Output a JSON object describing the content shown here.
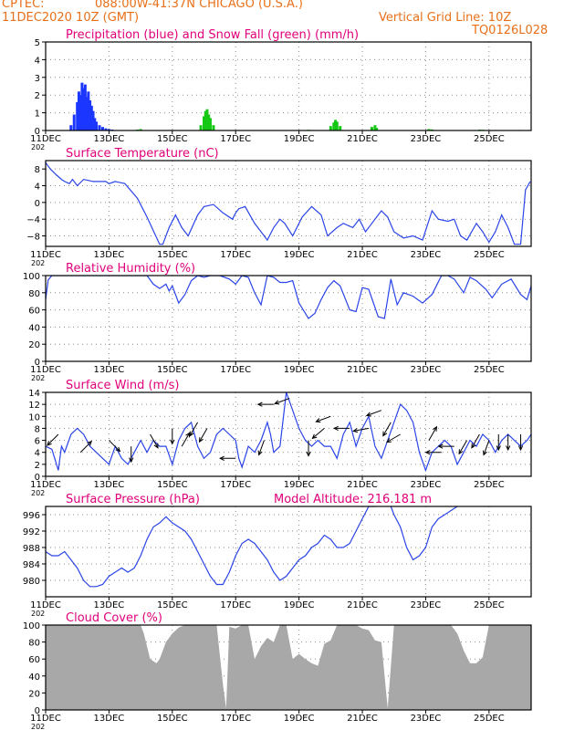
{
  "header": {
    "source": "CPTEC:",
    "location": "088:00W-41:37N   CHICAGO (U.S.A.)",
    "run": "11DEC2020 10Z (GMT)",
    "grid_note": "Vertical Grid Line: 10Z",
    "code": "TQ0126L028",
    "altitude_label": "Model Altitude: 216.181 m"
  },
  "colors": {
    "title": "#e0007a",
    "header": "#e8701a",
    "line": "#2a44e8",
    "precip": "#1b36ff",
    "snow": "#14c814",
    "cloud": "#a8a8a8",
    "wind": "#000000"
  },
  "x_axis": {
    "unit": "days since 11DEC2020 00Z",
    "range": [
      0,
      15.33
    ],
    "ticks": [
      0,
      2,
      4,
      6,
      8,
      10,
      12,
      14
    ],
    "tick_labels": [
      "11DEC",
      "13DEC",
      "15DEC",
      "17DEC",
      "19DEC",
      "21DEC",
      "23DEC",
      "25DEC"
    ],
    "year_fragment": "202"
  },
  "chart_data": [
    {
      "type": "bar",
      "title": "Precipitation (blue) and Snow Fall (green) (mm/h)",
      "ylim": [
        0,
        5
      ],
      "yticks": [
        0,
        1,
        2,
        3,
        4,
        5
      ],
      "series": [
        {
          "name": "Precipitation",
          "color": "#1b36ff",
          "x": [
            0.8,
            0.9,
            1.0,
            1.05,
            1.1,
            1.15,
            1.2,
            1.25,
            1.3,
            1.35,
            1.4,
            1.45,
            1.5,
            1.55,
            1.6,
            1.7,
            1.8,
            1.9,
            2.0,
            2.1
          ],
          "values": [
            0.3,
            0.9,
            1.6,
            2.2,
            2.0,
            2.7,
            2.4,
            2.6,
            1.9,
            2.2,
            1.7,
            1.4,
            1.1,
            0.7,
            0.5,
            0.3,
            0.2,
            0.12,
            0.08,
            0.05
          ]
        },
        {
          "name": "Snow Fall",
          "color": "#14c814",
          "x": [
            2.9,
            3.0,
            4.9,
            5.0,
            5.05,
            5.1,
            5.15,
            5.2,
            5.3,
            8.3,
            9.0,
            9.1,
            9.15,
            9.2,
            9.3,
            10.3,
            10.4,
            10.45,
            12.1,
            12.2,
            13.7,
            13.8,
            15.0
          ],
          "values": [
            0.05,
            0.08,
            0.3,
            0.8,
            1.1,
            1.2,
            0.9,
            0.7,
            0.3,
            0.04,
            0.25,
            0.45,
            0.6,
            0.5,
            0.25,
            0.2,
            0.3,
            0.15,
            0.08,
            0.06,
            0.05,
            0.04,
            0.03
          ]
        }
      ]
    },
    {
      "type": "line",
      "title": "Surface Temperature (nC)",
      "ylim": [
        -10.5,
        10
      ],
      "yticks": [
        -8,
        -4,
        0,
        4,
        8
      ],
      "ytick_labels": [
        "−8",
        "−4",
        "0",
        "4",
        "8"
      ],
      "x": [
        0,
        0.15,
        0.35,
        0.5,
        0.6,
        0.75,
        0.85,
        1.0,
        1.2,
        1.5,
        1.9,
        2.0,
        2.2,
        2.5,
        2.9,
        3.2,
        3.6,
        3.7,
        3.9,
        4.1,
        4.3,
        4.5,
        4.8,
        5.0,
        5.3,
        5.6,
        5.9,
        6.0,
        6.1,
        6.3,
        6.6,
        6.9,
        7.0,
        7.2,
        7.4,
        7.55,
        7.8,
        8.1,
        8.4,
        8.7,
        8.9,
        9.2,
        9.4,
        9.7,
        9.9,
        10.1,
        10.3,
        10.6,
        10.8,
        11.0,
        11.3,
        11.6,
        11.9,
        12.2,
        12.4,
        12.7,
        12.9,
        13.1,
        13.3,
        13.6,
        13.8,
        14.0,
        14.2,
        14.4,
        14.6,
        14.8,
        15.0,
        15.15,
        15.3
      ],
      "series": [
        {
          "name": "Surface Temperature",
          "color": "#2a44e8",
          "values": [
            9.5,
            8,
            6.5,
            5.5,
            5,
            4.5,
            5.5,
            4,
            5.5,
            5,
            5,
            4.5,
            5,
            4.5,
            1,
            -3.5,
            -10,
            -10,
            -6,
            -3,
            -6,
            -8,
            -3,
            -1,
            -0.5,
            -2.5,
            -4,
            -2.5,
            -1.5,
            -1,
            -5,
            -8,
            -9,
            -6,
            -4,
            -5,
            -8,
            -3.5,
            -1,
            -3,
            -8,
            -6,
            -5,
            -6,
            -4,
            -7,
            -5,
            -2,
            -3.5,
            -7,
            -8.5,
            -8,
            -9,
            -2,
            -4,
            -4.5,
            -4,
            -8,
            -9,
            -5,
            -7,
            -9.5,
            -7,
            -3,
            -6,
            -10,
            -10,
            3,
            5
          ]
        }
      ]
    },
    {
      "type": "line",
      "title": "Relative Humidity (%)",
      "ylim": [
        0,
        100
      ],
      "yticks": [
        0,
        20,
        40,
        60,
        80,
        100
      ],
      "x": [
        0,
        0.08,
        0.2,
        0.4,
        0.7,
        1.0,
        1.4,
        1.8,
        2.2,
        2.5,
        2.8,
        3.0,
        3.2,
        3.4,
        3.6,
        3.8,
        3.9,
        4.0,
        4.2,
        4.4,
        4.6,
        4.8,
        5.0,
        5.2,
        5.5,
        5.8,
        6.0,
        6.2,
        6.4,
        6.6,
        6.8,
        7.0,
        7.2,
        7.4,
        7.6,
        7.8,
        8.0,
        8.1,
        8.3,
        8.5,
        8.7,
        8.9,
        9.1,
        9.3,
        9.6,
        9.8,
        10.0,
        10.2,
        10.5,
        10.7,
        10.9,
        11.1,
        11.3,
        11.6,
        11.9,
        12.2,
        12.5,
        12.7,
        12.9,
        13.2,
        13.4,
        13.6,
        13.9,
        14.1,
        14.4,
        14.7,
        15.0,
        15.2,
        15.33
      ],
      "series": [
        {
          "name": "Relative Humidity",
          "color": "#2a44e8",
          "values": [
            72,
            95,
            100,
            100,
            100,
            100,
            100,
            100,
            100,
            100,
            100,
            100,
            100,
            90,
            85,
            90,
            82,
            88,
            68,
            78,
            94,
            100,
            98,
            100,
            100,
            96,
            90,
            100,
            98,
            80,
            66,
            100,
            98,
            92,
            92,
            94,
            68,
            62,
            50,
            56,
            72,
            86,
            94,
            88,
            60,
            58,
            86,
            84,
            52,
            50,
            96,
            66,
            80,
            76,
            68,
            78,
            100,
            100,
            96,
            80,
            98,
            94,
            84,
            74,
            90,
            96,
            78,
            72,
            88
          ]
        }
      ]
    },
    {
      "type": "line",
      "title": "Surface Wind (m/s)",
      "ylim": [
        0,
        14
      ],
      "yticks": [
        0,
        2,
        4,
        6,
        8,
        10,
        12,
        14
      ],
      "x": [
        0,
        0.2,
        0.4,
        0.5,
        0.6,
        0.8,
        1.0,
        1.2,
        1.4,
        1.6,
        1.8,
        2.0,
        2.2,
        2.4,
        2.6,
        2.8,
        3.0,
        3.2,
        3.4,
        3.6,
        3.8,
        4.0,
        4.2,
        4.4,
        4.6,
        4.8,
        5.0,
        5.2,
        5.4,
        5.6,
        5.8,
        6.0,
        6.1,
        6.2,
        6.4,
        6.6,
        6.8,
        7.0,
        7.1,
        7.2,
        7.4,
        7.6,
        7.8,
        8.0,
        8.2,
        8.4,
        8.6,
        8.8,
        9.0,
        9.2,
        9.4,
        9.6,
        9.8,
        10.0,
        10.2,
        10.4,
        10.6,
        10.8,
        11.0,
        11.2,
        11.4,
        11.6,
        11.8,
        12.0,
        12.2,
        12.4,
        12.6,
        12.8,
        13.0,
        13.2,
        13.4,
        13.6,
        13.8,
        14.0,
        14.2,
        14.4,
        14.6,
        14.8,
        15.0,
        15.2,
        15.33
      ],
      "series": [
        {
          "name": "Surface Wind speed",
          "color": "#2a44e8",
          "values": [
            5,
            4.5,
            1,
            5,
            4,
            7,
            8,
            7,
            5,
            4,
            3,
            2,
            5,
            3,
            2,
            4,
            6,
            4,
            6,
            5,
            5,
            2,
            6,
            8,
            9,
            5,
            3,
            4,
            7,
            8,
            7,
            6,
            3,
            1.5,
            5,
            4,
            6,
            9,
            7,
            4,
            5,
            14,
            11,
            8,
            6,
            5,
            6,
            5,
            5,
            3,
            7,
            9,
            5,
            8,
            10,
            5,
            3,
            6,
            9,
            12,
            11,
            9,
            4,
            1,
            4,
            5,
            6,
            5,
            2,
            4,
            6,
            5,
            7,
            6,
            4,
            6,
            7,
            6,
            5,
            6,
            7
          ]
        },
        {
          "name": "Wind direction arrows",
          "color": "#000000",
          "x": [
            0.4,
            1.1,
            2.0,
            2.7,
            3.3,
            4.0,
            4.3,
            4.8,
            5.1,
            6.0,
            6.9,
            7.2,
            7.7,
            8.3,
            8.8,
            9.0,
            9.6,
            10.2,
            10.6,
            10.9,
            11.2,
            12.1,
            12.5,
            12.9,
            13.3,
            13.7,
            14.0,
            14.3,
            14.6,
            15.0
          ],
          "speed": [
            7,
            4,
            6,
            5,
            7,
            8,
            5,
            9,
            8,
            3,
            6,
            12,
            13,
            6,
            8,
            10,
            8,
            8,
            11,
            9,
            7,
            6,
            4,
            5,
            6,
            7,
            6,
            7,
            7,
            7
          ],
          "dir_deg": [
            225,
            45,
            315,
            270,
            300,
            270,
            60,
            240,
            240,
            180,
            250,
            180,
            200,
            270,
            220,
            200,
            180,
            190,
            200,
            240,
            210,
            60,
            180,
            180,
            240,
            240,
            250,
            270,
            270,
            270
          ]
        }
      ]
    },
    {
      "type": "line",
      "title": "Surface Pressure (hPa)",
      "ylim": [
        976,
        998
      ],
      "yticks": [
        980,
        984,
        988,
        992,
        996
      ],
      "x": [
        0,
        0.2,
        0.4,
        0.6,
        0.8,
        1.0,
        1.2,
        1.4,
        1.6,
        1.8,
        2.0,
        2.2,
        2.4,
        2.6,
        2.8,
        3.0,
        3.2,
        3.4,
        3.6,
        3.8,
        4.0,
        4.2,
        4.4,
        4.6,
        4.8,
        5.0,
        5.2,
        5.4,
        5.6,
        5.8,
        6.0,
        6.2,
        6.4,
        6.6,
        6.8,
        7.0,
        7.2,
        7.4,
        7.6,
        7.8,
        8.0,
        8.2,
        8.4,
        8.6,
        8.8,
        9.0,
        9.2,
        9.4,
        9.6,
        9.8,
        10.0,
        10.2,
        10.4,
        10.5,
        10.7,
        10.9,
        11.0,
        11.2,
        11.4,
        11.6,
        11.8,
        12.0,
        12.2,
        12.4,
        12.6,
        12.8,
        13.0
      ],
      "series": [
        {
          "name": "Surface Pressure",
          "color": "#2a44e8",
          "values": [
            987,
            986,
            986,
            987,
            985,
            983,
            980,
            978.5,
            978.5,
            979,
            981,
            982,
            983,
            982,
            983,
            986,
            990,
            993,
            994,
            995.5,
            994,
            993,
            992,
            990,
            987,
            984,
            981,
            979,
            979,
            982,
            986,
            989,
            990,
            989,
            987,
            985,
            982,
            980,
            981,
            983,
            985,
            986,
            988,
            989,
            991,
            990,
            988,
            988,
            989,
            992,
            995,
            998,
            998,
            999,
            999,
            998,
            996,
            993,
            988,
            985,
            986,
            988,
            993,
            995,
            996,
            997,
            998
          ]
        }
      ]
    },
    {
      "type": "area",
      "title": "Cloud Cover (%)",
      "ylim": [
        0,
        100
      ],
      "yticks": [
        0,
        20,
        40,
        60,
        80,
        100
      ],
      "x": [
        0,
        0.5,
        1.0,
        1.5,
        2.0,
        2.5,
        3.0,
        3.1,
        3.3,
        3.5,
        3.6,
        3.8,
        4.0,
        4.2,
        4.4,
        4.6,
        4.8,
        5.0,
        5.2,
        5.4,
        5.6,
        5.7,
        5.8,
        6.0,
        6.2,
        6.4,
        6.6,
        6.8,
        7.0,
        7.2,
        7.4,
        7.6,
        7.8,
        8.0,
        8.2,
        8.4,
        8.6,
        8.8,
        9.0,
        9.2,
        9.4,
        9.6,
        9.8,
        10.0,
        10.2,
        10.4,
        10.6,
        10.8,
        11.0,
        11.2,
        11.4,
        11.6,
        11.8,
        12.0,
        12.2,
        12.5,
        12.8,
        13.0,
        13.2,
        13.4,
        13.6,
        13.8,
        14.0,
        14.2,
        14.5,
        14.8,
        15.0,
        15.2,
        15.33
      ],
      "series": [
        {
          "name": "Cloud Cover",
          "color": "#a8a8a8",
          "values": [
            100,
            100,
            100,
            100,
            100,
            100,
            100,
            90,
            60,
            55,
            60,
            80,
            90,
            97,
            100,
            100,
            100,
            100,
            100,
            100,
            30,
            2,
            98,
            96,
            100,
            100,
            60,
            75,
            85,
            80,
            100,
            100,
            60,
            66,
            60,
            55,
            52,
            78,
            82,
            100,
            100,
            100,
            100,
            96,
            94,
            82,
            80,
            2,
            100,
            100,
            100,
            100,
            100,
            100,
            100,
            100,
            100,
            90,
            70,
            55,
            55,
            62,
            100,
            100,
            100,
            100,
            100,
            100,
            100
          ]
        }
      ]
    }
  ]
}
